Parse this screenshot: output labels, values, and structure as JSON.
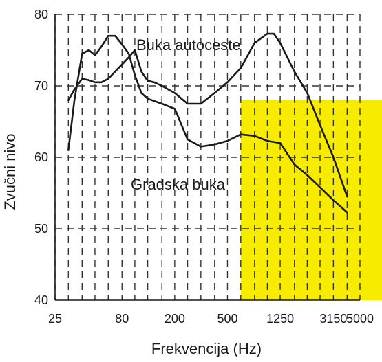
{
  "chart_data": {
    "type": "line",
    "xlabel": "Frekvencija (Hz)",
    "ylabel": "Zvučni nivo",
    "ylim": [
      40,
      80
    ],
    "yticks": [
      40,
      50,
      60,
      70,
      80
    ],
    "x_tick_labels": [
      "25",
      "80",
      "200",
      "500",
      "1250",
      "3150",
      "5000"
    ],
    "grid": true,
    "highlight_color": "#f7ec00",
    "highlight_region": {
      "x_from": "630 Hz",
      "y_to": 68
    },
    "series": [
      {
        "name": "Buka autoceste",
        "x": [
          31.5,
          35,
          40,
          45,
          50,
          56,
          63,
          71,
          80,
          90,
          100,
          112,
          125,
          140,
          160,
          200,
          250,
          315,
          400,
          500,
          630,
          800,
          1000,
          1120,
          1250,
          1600,
          2000,
          2500,
          3150,
          4000
        ],
        "values": [
          68,
          69.5,
          71,
          70.8,
          70.5,
          70.5,
          71,
          72,
          73,
          74,
          75,
          72,
          70.7,
          70.5,
          70,
          69,
          67.5,
          67.5,
          69,
          70.5,
          72.5,
          76,
          77.3,
          77.3,
          76,
          72,
          69,
          64.5,
          60,
          54.5
        ]
      },
      {
        "name": "Gradska buka",
        "x": [
          31.5,
          35,
          40,
          45,
          50,
          56,
          63,
          71,
          80,
          90,
          100,
          112,
          125,
          160,
          200,
          250,
          315,
          400,
          500,
          630,
          800,
          1000,
          1250,
          1600,
          2000,
          2500,
          3150,
          4000
        ],
        "values": [
          61,
          68,
          74.5,
          75,
          74.3,
          75.5,
          77,
          77,
          75.8,
          74.5,
          71.5,
          69,
          68.2,
          67.5,
          66.8,
          62.5,
          61.5,
          61.8,
          62.3,
          63.2,
          63,
          62.3,
          62,
          59,
          57.5,
          55.8,
          54,
          52.3
        ]
      }
    ],
    "annotations": [
      "Buka autoceste",
      "Gradska buka"
    ]
  }
}
